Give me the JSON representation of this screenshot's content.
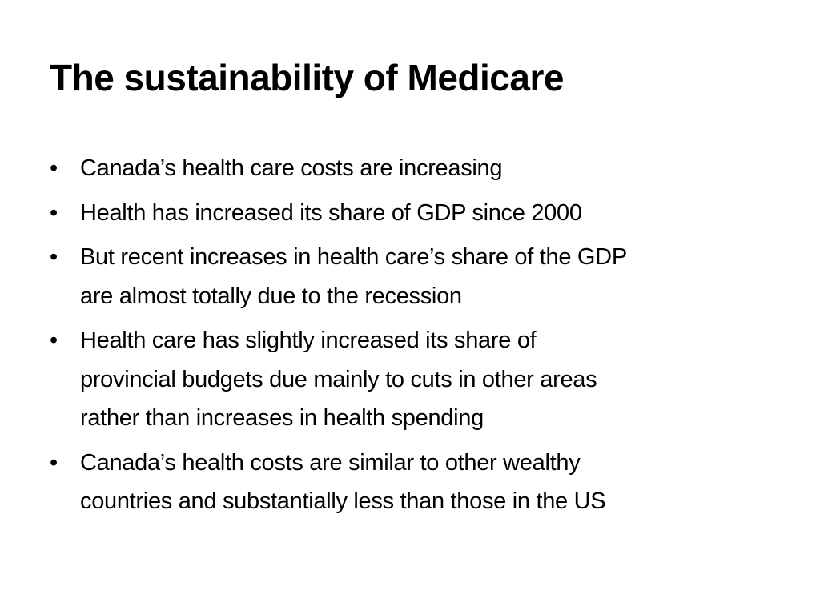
{
  "slide": {
    "title": "The sustainability of Medicare",
    "bullet_symbol": "•",
    "bullets": [
      {
        "lines": [
          "Canada’s health care costs are increasing"
        ]
      },
      {
        "lines": [
          "Health has increased its share of GDP since 2000"
        ]
      },
      {
        "lines": [
          "But recent increases in health care’s share of the GDP",
          "are almost totally due to the recession"
        ]
      },
      {
        "lines": [
          "Health care has slightly increased its share of",
          "provincial budgets due mainly to cuts in other areas",
          "rather than increases in health spending"
        ]
      },
      {
        "lines": [
          "Canada’s health costs are similar to other wealthy",
          "countries and substantially less than those in the US"
        ]
      }
    ]
  }
}
